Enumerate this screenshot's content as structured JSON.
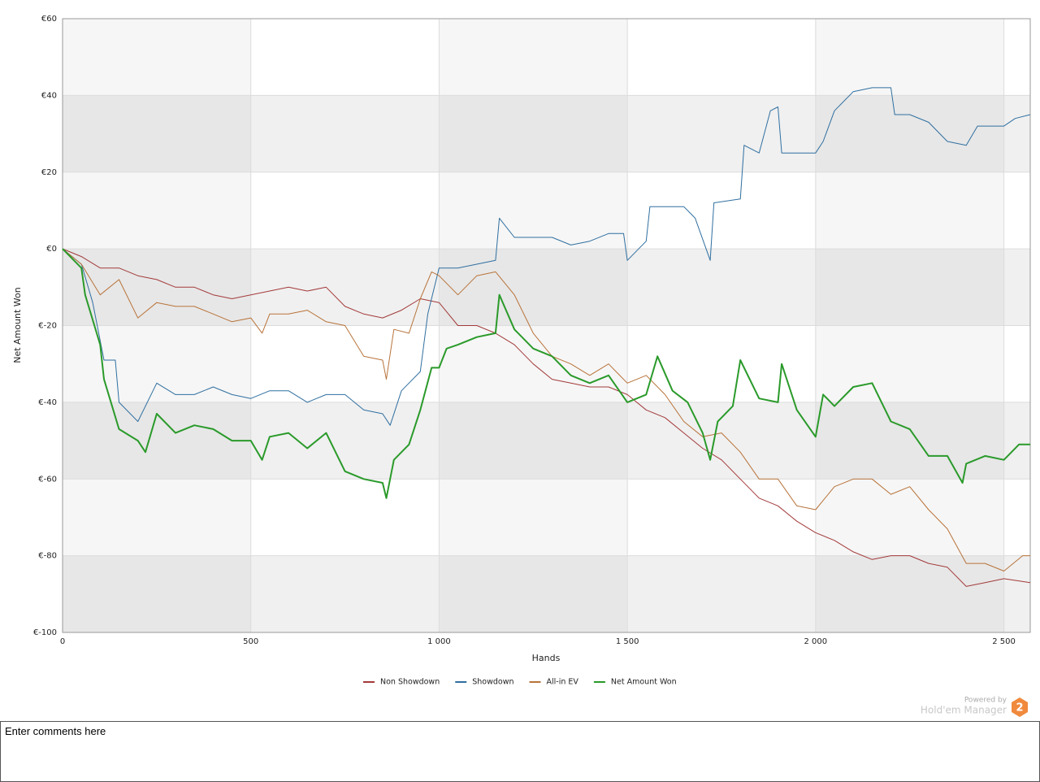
{
  "chart_data": {
    "type": "line",
    "xlabel": "Hands",
    "ylabel": "Net Amount Won",
    "xlim": [
      0,
      2570
    ],
    "ylim": [
      -100,
      60
    ],
    "xticks": [
      0,
      500,
      {
        "value": 1000,
        "label": "1 000"
      },
      {
        "value": 1500,
        "label": "1 500"
      },
      {
        "value": 2000,
        "label": "2 000"
      },
      {
        "value": 2500,
        "label": "2 500"
      }
    ],
    "yticks": [
      {
        "value": -100,
        "label": "€-100"
      },
      {
        "value": -80,
        "label": "€-80"
      },
      {
        "value": -60,
        "label": "€-60"
      },
      {
        "value": -40,
        "label": "€-40"
      },
      {
        "value": -20,
        "label": "€-20"
      },
      {
        "value": 0,
        "label": "€0"
      },
      {
        "value": 20,
        "label": "€20"
      },
      {
        "value": 40,
        "label": "€40"
      },
      {
        "value": 60,
        "label": "€60"
      }
    ],
    "grid": true,
    "legend": "bottom",
    "series": [
      {
        "name": "Non Showdown",
        "color": "#a33a3a",
        "width": 1,
        "x": [
          0,
          50,
          100,
          150,
          200,
          250,
          300,
          350,
          400,
          450,
          500,
          550,
          600,
          650,
          700,
          750,
          800,
          850,
          900,
          950,
          1000,
          1050,
          1100,
          1150,
          1200,
          1250,
          1300,
          1350,
          1400,
          1450,
          1500,
          1550,
          1600,
          1650,
          1700,
          1750,
          1800,
          1850,
          1900,
          1950,
          2000,
          2050,
          2100,
          2150,
          2200,
          2250,
          2300,
          2350,
          2400,
          2450,
          2500,
          2570
        ],
        "values": [
          0,
          -2,
          -5,
          -5,
          -7,
          -8,
          -10,
          -10,
          -12,
          -13,
          -12,
          -11,
          -10,
          -11,
          -10,
          -15,
          -17,
          -18,
          -16,
          -13,
          -14,
          -20,
          -20,
          -22,
          -25,
          -30,
          -34,
          -35,
          -36,
          -36,
          -38,
          -42,
          -44,
          -48,
          -52,
          -55,
          -60,
          -65,
          -67,
          -71,
          -74,
          -76,
          -79,
          -81,
          -80,
          -80,
          -82,
          -83,
          -88,
          -87,
          -86,
          -87
        ]
      },
      {
        "name": "Showdown",
        "color": "#2f6fa0",
        "width": 1,
        "x": [
          0,
          50,
          80,
          110,
          140,
          150,
          200,
          250,
          300,
          350,
          400,
          450,
          500,
          550,
          600,
          650,
          700,
          750,
          800,
          850,
          870,
          900,
          950,
          970,
          1000,
          1050,
          1100,
          1150,
          1160,
          1200,
          1250,
          1300,
          1350,
          1400,
          1450,
          1490,
          1500,
          1550,
          1560,
          1650,
          1680,
          1720,
          1730,
          1800,
          1810,
          1850,
          1880,
          1900,
          1910,
          2000,
          2020,
          2050,
          2100,
          2150,
          2200,
          2210,
          2250,
          2300,
          2350,
          2400,
          2430,
          2500,
          2530,
          2570
        ],
        "values": [
          0,
          -4,
          -14,
          -29,
          -29,
          -40,
          -45,
          -35,
          -38,
          -38,
          -36,
          -38,
          -39,
          -37,
          -37,
          -40,
          -38,
          -38,
          -42,
          -43,
          -46,
          -37,
          -32,
          -17,
          -5,
          -5,
          -4,
          -3,
          8,
          3,
          3,
          3,
          1,
          2,
          4,
          4,
          -3,
          2,
          11,
          11,
          8,
          -3,
          12,
          13,
          27,
          25,
          36,
          37,
          25,
          25,
          28,
          36,
          41,
          42,
          42,
          35,
          35,
          33,
          28,
          27,
          32,
          32,
          34,
          35
        ]
      },
      {
        "name": "All-in EV",
        "color": "#b8733a",
        "width": 1,
        "x": [
          0,
          50,
          100,
          150,
          200,
          250,
          300,
          350,
          400,
          450,
          500,
          530,
          550,
          600,
          650,
          700,
          750,
          800,
          850,
          860,
          880,
          920,
          950,
          980,
          1000,
          1050,
          1100,
          1150,
          1200,
          1250,
          1300,
          1350,
          1400,
          1450,
          1500,
          1550,
          1600,
          1650,
          1700,
          1750,
          1800,
          1850,
          1900,
          1950,
          2000,
          2050,
          2100,
          2150,
          2200,
          2250,
          2300,
          2350,
          2400,
          2450,
          2500,
          2550,
          2570
        ],
        "values": [
          0,
          -4,
          -12,
          -8,
          -18,
          -14,
          -15,
          -15,
          -17,
          -19,
          -18,
          -22,
          -17,
          -17,
          -16,
          -19,
          -20,
          -28,
          -29,
          -34,
          -21,
          -22,
          -13,
          -6,
          -7,
          -12,
          -7,
          -6,
          -12,
          -22,
          -28,
          -30,
          -33,
          -30,
          -35,
          -33,
          -38,
          -45,
          -49,
          -48,
          -53,
          -60,
          -60,
          -67,
          -68,
          -62,
          -60,
          -60,
          -64,
          -62,
          -68,
          -73,
          -82,
          -82,
          -84,
          -80,
          -80
        ]
      },
      {
        "name": "Net Amount Won",
        "color": "#2a9a2a",
        "width": 2,
        "x": [
          0,
          50,
          60,
          100,
          110,
          150,
          200,
          220,
          250,
          300,
          350,
          400,
          450,
          500,
          530,
          550,
          600,
          650,
          700,
          750,
          800,
          850,
          860,
          880,
          920,
          950,
          980,
          1000,
          1020,
          1050,
          1100,
          1150,
          1160,
          1200,
          1250,
          1300,
          1350,
          1400,
          1450,
          1500,
          1550,
          1580,
          1620,
          1660,
          1700,
          1720,
          1740,
          1780,
          1800,
          1850,
          1900,
          1910,
          1950,
          2000,
          2020,
          2050,
          2100,
          2150,
          2200,
          2250,
          2300,
          2350,
          2390,
          2400,
          2450,
          2500,
          2540,
          2570
        ],
        "values": [
          0,
          -5,
          -12,
          -25,
          -34,
          -47,
          -50,
          -53,
          -43,
          -48,
          -46,
          -47,
          -50,
          -50,
          -55,
          -49,
          -48,
          -52,
          -48,
          -58,
          -60,
          -61,
          -65,
          -55,
          -51,
          -42,
          -31,
          -31,
          -26,
          -25,
          -23,
          -22,
          -12,
          -21,
          -26,
          -28,
          -33,
          -35,
          -33,
          -40,
          -38,
          -28,
          -37,
          -40,
          -48,
          -55,
          -45,
          -41,
          -29,
          -39,
          -40,
          -30,
          -42,
          -49,
          -38,
          -41,
          -36,
          -35,
          -45,
          -47,
          -54,
          -54,
          -61,
          -56,
          -54,
          -55,
          -51,
          -51
        ]
      }
    ]
  },
  "branding": {
    "powered_by": "Powered by",
    "product": "Hold'em Manager",
    "badge": "2"
  },
  "comments": {
    "placeholder": "Enter comments here"
  }
}
